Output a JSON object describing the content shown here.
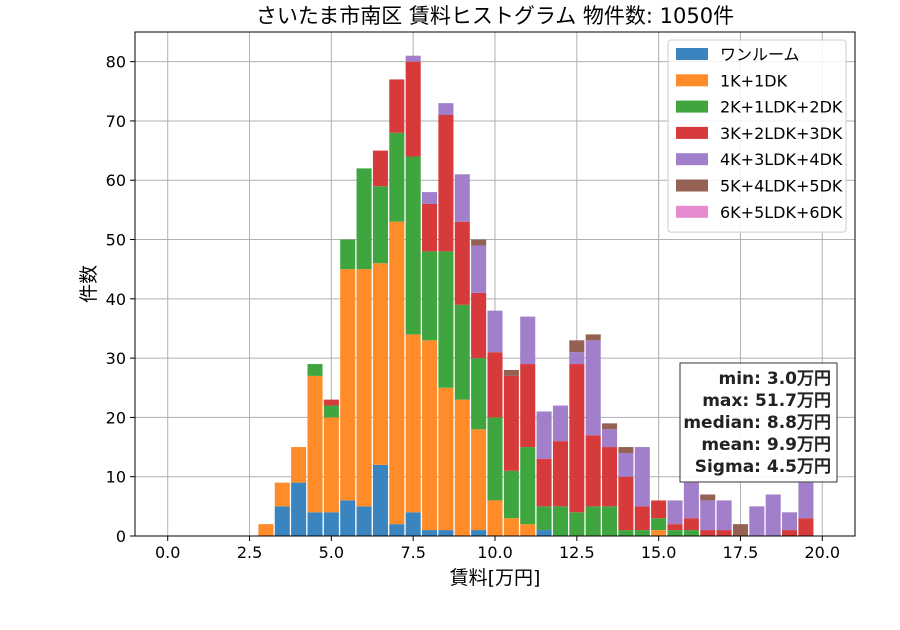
{
  "chart_data": {
    "type": "bar",
    "stacked": true,
    "title": "さいたま市南区 賃料ヒストグラム 物件数: 1050件",
    "xlabel": "賃料[万円]",
    "ylabel": "件数",
    "xlim": [
      -1.0,
      21.0
    ],
    "ylim": [
      0,
      85
    ],
    "xticks": [
      "0.0",
      "2.5",
      "5.0",
      "7.5",
      "10.0",
      "12.5",
      "15.0",
      "17.5",
      "20.0"
    ],
    "yticks": [
      "0",
      "10",
      "20",
      "30",
      "40",
      "50",
      "60",
      "70",
      "80"
    ],
    "grid": true,
    "legend_position": "upper right",
    "bin_width": 0.5,
    "bin_starts": [
      2.75,
      3.25,
      3.75,
      4.25,
      4.75,
      5.25,
      5.75,
      6.25,
      6.75,
      7.25,
      7.75,
      8.25,
      8.75,
      9.25,
      9.75,
      10.25,
      10.75,
      11.25,
      11.75,
      12.25,
      12.75,
      13.25,
      13.75,
      14.25,
      14.75,
      15.25,
      15.75,
      16.25,
      16.75,
      17.25,
      17.75,
      18.25,
      18.75,
      19.25
    ],
    "series": [
      {
        "name": "ワンルーム",
        "color": "#3a85c0",
        "values": [
          0,
          5,
          9,
          4,
          4,
          6,
          5,
          12,
          2,
          4,
          1,
          1,
          0,
          1,
          0,
          0,
          0,
          1,
          0,
          0,
          0,
          0,
          0,
          0,
          0,
          0,
          0,
          0,
          0,
          0,
          0,
          0,
          0,
          0
        ]
      },
      {
        "name": "1K+1DK",
        "color": "#ff8c28",
        "values": [
          2,
          4,
          6,
          23,
          16,
          39,
          40,
          34,
          51,
          30,
          32,
          24,
          23,
          17,
          6,
          3,
          2,
          0,
          0,
          0,
          0,
          0,
          0,
          0,
          1,
          0,
          0,
          0,
          0,
          0,
          0,
          0,
          0,
          0
        ]
      },
      {
        "name": "2K+1LDK+2DK",
        "color": "#3fa63f",
        "values": [
          0,
          0,
          0,
          2,
          2,
          5,
          17,
          13,
          15,
          30,
          15,
          23,
          16,
          12,
          14,
          8,
          13,
          4,
          5,
          4,
          5,
          5,
          1,
          1,
          2,
          1,
          1,
          0,
          0,
          0,
          0,
          0,
          0,
          0
        ]
      },
      {
        "name": "3K+2LDK+3DK",
        "color": "#d63a3a",
        "values": [
          0,
          0,
          0,
          0,
          1,
          0,
          0,
          6,
          9,
          16,
          8,
          23,
          14,
          11,
          11,
          16,
          14,
          8,
          11,
          25,
          12,
          10,
          9,
          4,
          3,
          1,
          2,
          1,
          1,
          0,
          0,
          0,
          1,
          3
        ]
      },
      {
        "name": "4K+3LDK+4DK",
        "color": "#a17fca",
        "values": [
          0,
          0,
          0,
          0,
          0,
          0,
          0,
          0,
          0,
          1,
          2,
          2,
          8,
          8,
          7,
          0,
          8,
          8,
          6,
          2,
          16,
          3,
          4,
          10,
          0,
          4,
          6,
          5,
          5,
          0,
          5,
          7,
          3,
          6
        ]
      },
      {
        "name": "5K+4LDK+5DK",
        "color": "#946152",
        "values": [
          0,
          0,
          0,
          0,
          0,
          0,
          0,
          0,
          0,
          0,
          0,
          0,
          0,
          1,
          0,
          1,
          0,
          0,
          0,
          2,
          1,
          1,
          1,
          0,
          0,
          0,
          0,
          1,
          0,
          2,
          0,
          0,
          0,
          0
        ]
      },
      {
        "name": "6K+5LDK+6DK",
        "color": "#e78bd0",
        "values": [
          0,
          0,
          0,
          0,
          0,
          0,
          0,
          0,
          0,
          0,
          0,
          0,
          0,
          0,
          0,
          0,
          0,
          0,
          0,
          0,
          0,
          0,
          0,
          0,
          0,
          0,
          0,
          0,
          0,
          0,
          0,
          0,
          0,
          0
        ]
      }
    ],
    "stats": [
      "min: 3.0万円",
      "max: 51.7万円",
      "median: 8.8万円",
      "mean: 9.9万円",
      "Sigma: 4.5万円"
    ]
  }
}
